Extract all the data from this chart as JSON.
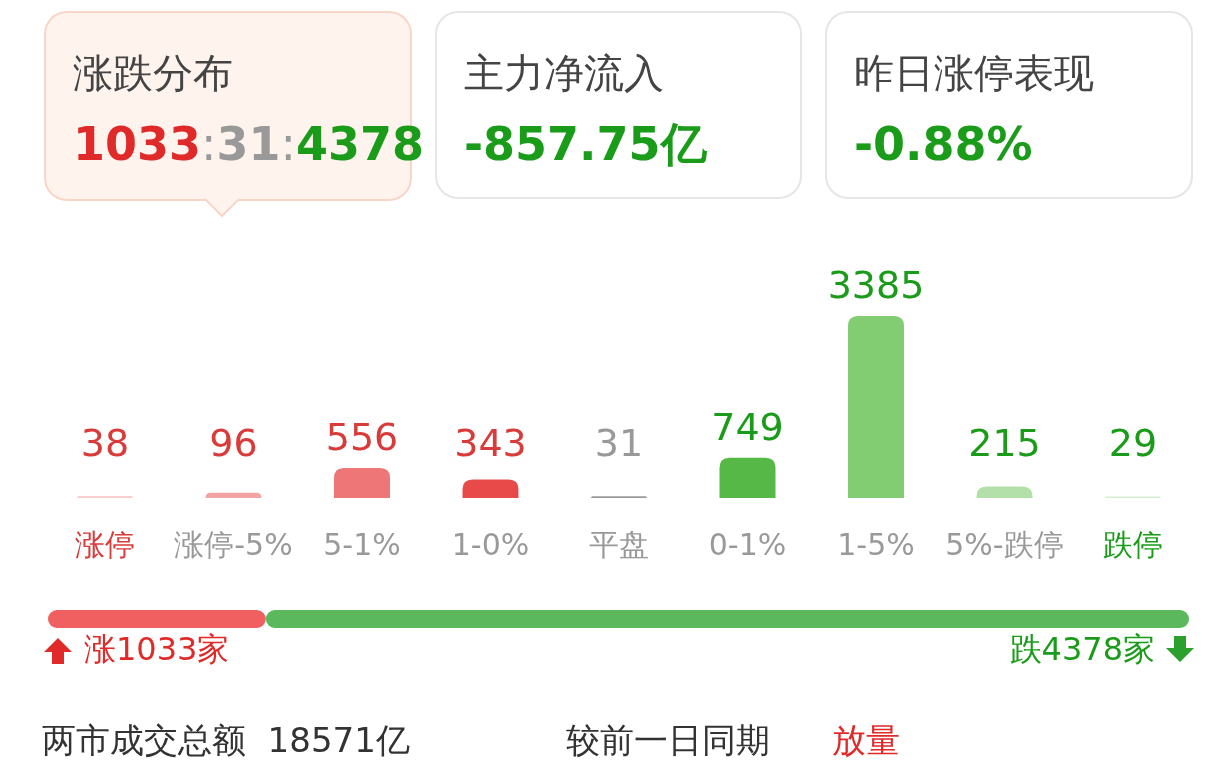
{
  "chart_data": [
    {
      "type": "other",
      "annotations": [
        "涨跌分布",
        "1033:31:4378",
        "主力净流入",
        "-857.75亿",
        "昨日涨停表现",
        "-0.88%"
      ]
    },
    {
      "type": "bar",
      "categories": [
        "涨停",
        "涨停-5%",
        "5-1%",
        "1-0%",
        "平盘",
        "0-1%",
        "1-5%",
        "5%-跌停",
        "跌停"
      ],
      "values": [
        38,
        96,
        556,
        343,
        31,
        749,
        3385,
        215,
        29
      ],
      "colors": [
        "#f7cfcf",
        "#f2a3a3",
        "#ee7676",
        "#e84a4a",
        "#9a9a9a",
        "#56b846",
        "#82cc72",
        "#b3e0a8",
        "#d5eecf"
      ],
      "data_labels": true
    },
    {
      "type": "bar",
      "orientation": "horizontal",
      "stacked": true,
      "categories": [
        null
      ],
      "series": [
        {
          "color": "#f06060",
          "values": [
            1033
          ],
          "value_labels": [
            "涨1033家"
          ]
        },
        {
          "color": "#5cb85c",
          "values": [
            4378
          ],
          "value_labels": [
            "跌4378家"
          ]
        }
      ],
      "annotations": [
        "两市成交总额  18571亿",
        "较前一日同期",
        "放量"
      ]
    }
  ]
}
